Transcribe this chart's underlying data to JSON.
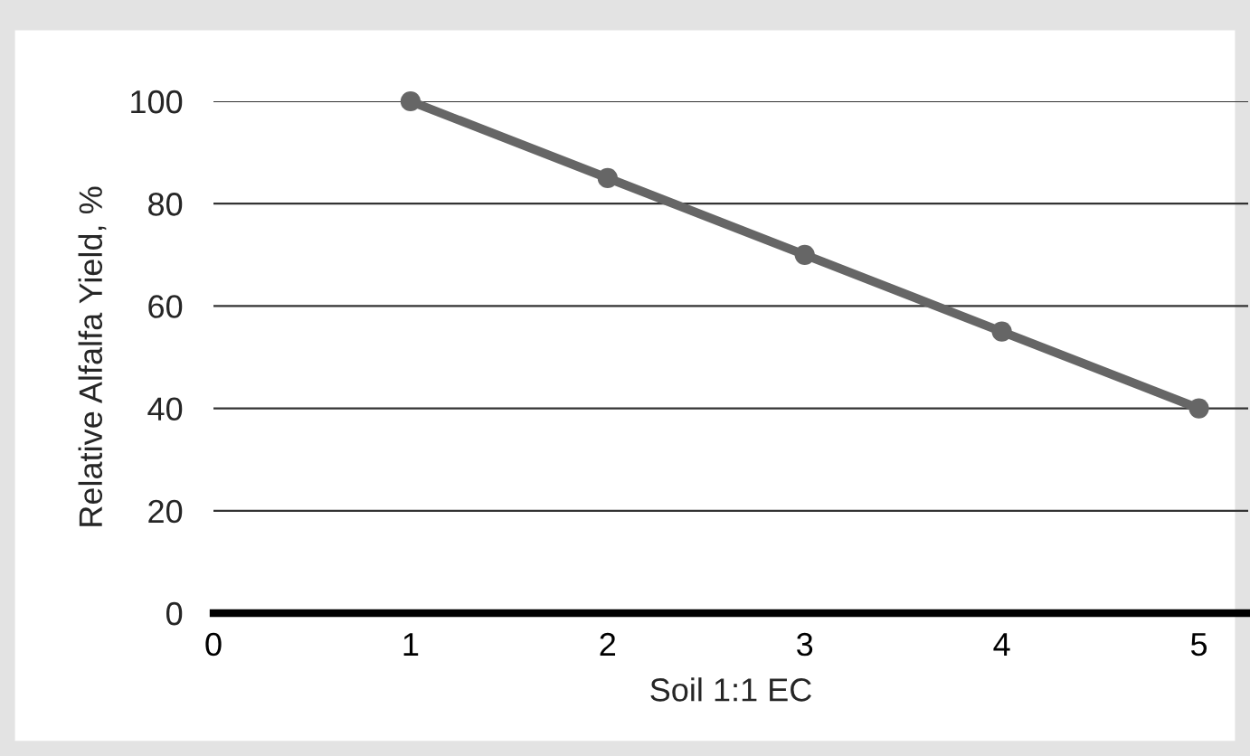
{
  "chart_data": {
    "type": "line",
    "xlabel": "Soil 1:1 EC",
    "ylabel": "Relative Alfalfa Yield, %",
    "x": [
      1,
      2,
      3,
      4,
      5
    ],
    "series": [
      {
        "color": "#666666",
        "values": [
          100,
          85,
          70,
          55,
          40
        ]
      }
    ],
    "xlim": [
      0,
      5.25
    ],
    "xticks": [
      0,
      1,
      2,
      3,
      4,
      5
    ],
    "ylim": [
      0,
      100
    ],
    "yticks": [
      0,
      20,
      40,
      60,
      80,
      100
    ],
    "grid": "y",
    "marker": "circle",
    "line_style": "solid",
    "legend": false
  }
}
